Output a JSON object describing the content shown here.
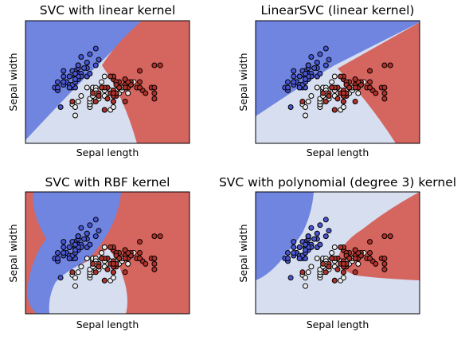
{
  "colors": {
    "blue_region": "#6f85e0",
    "light_region": "#d6def0",
    "red_region": "#d5655f",
    "blue_point": "#4a55cf",
    "white_point": "#ececec",
    "red_point": "#b0322a",
    "point_edge": "#000000"
  },
  "chart_data": [
    {
      "type": "scatter",
      "title": "SVC with linear kernel",
      "xlabel": "Sepal length",
      "ylabel": "Sepal width",
      "kernel": "linear",
      "grid": false,
      "legend": "none"
    },
    {
      "type": "scatter",
      "title": "LinearSVC (linear kernel)",
      "xlabel": "Sepal length",
      "ylabel": "Sepal width",
      "kernel": "linearsvc",
      "grid": false,
      "legend": "none"
    },
    {
      "type": "scatter",
      "title": "SVC with RBF kernel",
      "xlabel": "Sepal length",
      "ylabel": "Sepal width",
      "kernel": "rbf",
      "grid": false,
      "legend": "none"
    },
    {
      "type": "scatter",
      "title": "SVC with polynomial (degree 3) kernel",
      "xlabel": "Sepal length",
      "ylabel": "Sepal width",
      "kernel": "poly",
      "grid": false,
      "legend": "none"
    }
  ],
  "points": {
    "setosa": [
      [
        5.1,
        3.5
      ],
      [
        4.9,
        3.0
      ],
      [
        4.7,
        3.2
      ],
      [
        4.6,
        3.1
      ],
      [
        5.0,
        3.6
      ],
      [
        5.4,
        3.9
      ],
      [
        4.6,
        3.4
      ],
      [
        5.0,
        3.4
      ],
      [
        4.4,
        2.9
      ],
      [
        4.9,
        3.1
      ],
      [
        5.4,
        3.7
      ],
      [
        4.8,
        3.4
      ],
      [
        4.8,
        3.0
      ],
      [
        4.3,
        3.0
      ],
      [
        5.8,
        4.0
      ],
      [
        5.7,
        4.4
      ],
      [
        5.4,
        3.9
      ],
      [
        5.1,
        3.5
      ],
      [
        5.7,
        3.8
      ],
      [
        5.1,
        3.8
      ],
      [
        5.4,
        3.4
      ],
      [
        5.1,
        3.7
      ],
      [
        4.6,
        3.6
      ],
      [
        5.1,
        3.3
      ],
      [
        4.8,
        3.4
      ],
      [
        5.0,
        3.0
      ],
      [
        5.0,
        3.4
      ],
      [
        5.2,
        3.5
      ],
      [
        5.2,
        3.4
      ],
      [
        4.7,
        3.2
      ],
      [
        4.8,
        3.1
      ],
      [
        5.4,
        3.4
      ],
      [
        5.2,
        4.1
      ],
      [
        5.5,
        4.2
      ],
      [
        4.9,
        3.1
      ],
      [
        5.0,
        3.2
      ],
      [
        5.5,
        3.5
      ],
      [
        4.9,
        3.6
      ],
      [
        4.4,
        3.0
      ],
      [
        5.1,
        3.4
      ],
      [
        5.0,
        3.5
      ],
      [
        4.5,
        2.3
      ],
      [
        4.4,
        3.2
      ],
      [
        5.0,
        3.5
      ],
      [
        5.1,
        3.8
      ],
      [
        4.8,
        3.0
      ],
      [
        5.1,
        3.8
      ],
      [
        4.6,
        3.2
      ],
      [
        5.3,
        3.7
      ],
      [
        5.0,
        3.3
      ]
    ],
    "versicolor": [
      [
        7.0,
        3.2
      ],
      [
        6.4,
        3.2
      ],
      [
        6.9,
        3.1
      ],
      [
        5.5,
        2.3
      ],
      [
        6.5,
        2.8
      ],
      [
        5.7,
        2.8
      ],
      [
        6.3,
        3.3
      ],
      [
        4.9,
        2.4
      ],
      [
        6.6,
        2.9
      ],
      [
        5.2,
        2.7
      ],
      [
        5.0,
        2.0
      ],
      [
        5.9,
        3.0
      ],
      [
        6.0,
        2.2
      ],
      [
        6.1,
        2.9
      ],
      [
        5.6,
        2.9
      ],
      [
        6.7,
        3.1
      ],
      [
        5.6,
        3.0
      ],
      [
        5.8,
        2.7
      ],
      [
        6.2,
        2.2
      ],
      [
        5.6,
        2.5
      ],
      [
        5.9,
        3.2
      ],
      [
        6.1,
        2.8
      ],
      [
        6.3,
        2.5
      ],
      [
        6.1,
        2.8
      ],
      [
        6.4,
        2.9
      ],
      [
        6.6,
        3.0
      ],
      [
        6.8,
        2.8
      ],
      [
        6.7,
        3.0
      ],
      [
        6.0,
        2.9
      ],
      [
        5.7,
        2.6
      ],
      [
        5.5,
        2.4
      ],
      [
        5.5,
        2.4
      ],
      [
        5.8,
        2.7
      ],
      [
        6.0,
        2.7
      ],
      [
        5.4,
        3.0
      ],
      [
        6.0,
        3.4
      ],
      [
        6.7,
        3.1
      ],
      [
        6.3,
        2.3
      ],
      [
        5.6,
        3.0
      ],
      [
        5.5,
        2.5
      ],
      [
        5.5,
        2.6
      ],
      [
        6.1,
        3.0
      ],
      [
        5.8,
        2.6
      ],
      [
        5.0,
        2.3
      ],
      [
        5.6,
        2.7
      ],
      [
        5.7,
        3.0
      ],
      [
        5.7,
        2.9
      ],
      [
        6.2,
        2.9
      ],
      [
        5.1,
        2.5
      ],
      [
        5.7,
        2.8
      ]
    ],
    "virginica": [
      [
        6.3,
        3.3
      ],
      [
        5.8,
        2.7
      ],
      [
        7.1,
        3.0
      ],
      [
        6.3,
        2.9
      ],
      [
        6.5,
        3.0
      ],
      [
        7.6,
        3.0
      ],
      [
        4.9,
        2.5
      ],
      [
        7.3,
        2.9
      ],
      [
        6.7,
        2.5
      ],
      [
        7.2,
        3.6
      ],
      [
        6.5,
        3.2
      ],
      [
        6.4,
        2.7
      ],
      [
        6.8,
        3.0
      ],
      [
        5.7,
        2.5
      ],
      [
        5.8,
        2.8
      ],
      [
        6.4,
        3.2
      ],
      [
        6.5,
        3.0
      ],
      [
        7.7,
        3.8
      ],
      [
        7.7,
        2.6
      ],
      [
        6.0,
        2.2
      ],
      [
        6.9,
        3.2
      ],
      [
        5.6,
        2.8
      ],
      [
        7.7,
        2.8
      ],
      [
        6.3,
        2.7
      ],
      [
        6.7,
        3.3
      ],
      [
        7.2,
        3.2
      ],
      [
        6.2,
        2.8
      ],
      [
        6.1,
        3.0
      ],
      [
        6.4,
        2.8
      ],
      [
        7.2,
        3.0
      ],
      [
        7.4,
        2.8
      ],
      [
        7.9,
        3.8
      ],
      [
        6.4,
        2.8
      ],
      [
        6.3,
        2.8
      ],
      [
        6.1,
        2.6
      ],
      [
        7.7,
        3.0
      ],
      [
        6.3,
        3.4
      ],
      [
        6.4,
        3.1
      ],
      [
        6.0,
        3.0
      ],
      [
        6.9,
        3.1
      ],
      [
        6.7,
        3.1
      ],
      [
        6.9,
        3.1
      ],
      [
        5.8,
        2.7
      ],
      [
        6.8,
        3.2
      ],
      [
        6.7,
        3.3
      ],
      [
        6.7,
        3.0
      ],
      [
        6.3,
        2.5
      ],
      [
        6.5,
        3.0
      ],
      [
        6.2,
        3.4
      ],
      [
        5.9,
        3.0
      ]
    ]
  }
}
